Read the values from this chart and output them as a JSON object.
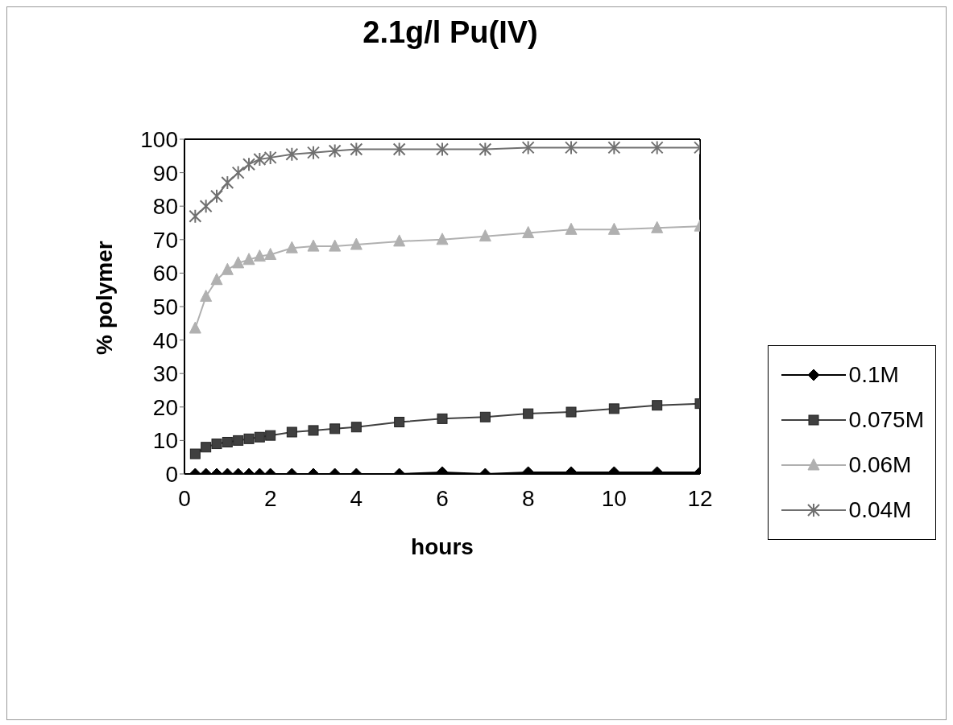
{
  "chart_data": {
    "type": "line",
    "title": "2.1g/l Pu(IV)",
    "xlabel": "hours",
    "ylabel": "% polymer",
    "x": [
      0.25,
      0.5,
      0.75,
      1,
      1.25,
      1.5,
      1.75,
      2,
      2.5,
      3,
      3.5,
      4,
      5,
      6,
      7,
      8,
      9,
      10,
      11,
      12
    ],
    "series": [
      {
        "name": "0.1M",
        "color": "#000000",
        "marker": "diamond",
        "values": [
          0,
          0,
          0,
          0,
          0,
          0,
          0,
          0,
          0,
          0,
          0,
          0,
          0,
          0.5,
          0,
          0.5,
          0.5,
          0.5,
          0.5,
          0.5
        ]
      },
      {
        "name": "0.075M",
        "color": "#404040",
        "marker": "square",
        "values": [
          6,
          8,
          9,
          9.5,
          10,
          10.5,
          11,
          11.5,
          12.5,
          13,
          13.5,
          14,
          15.5,
          16.5,
          17,
          18,
          18.5,
          19.5,
          20.5,
          21
        ]
      },
      {
        "name": "0.06M",
        "color": "#b0b0b0",
        "marker": "triangle",
        "values": [
          43.5,
          53,
          58,
          61,
          63,
          64,
          65,
          65.5,
          67.5,
          68,
          68,
          68.5,
          69.5,
          70,
          71,
          72,
          73,
          73,
          73.5,
          74
        ]
      },
      {
        "name": "0.04M",
        "color": "#707070",
        "marker": "cross",
        "values": [
          77,
          80,
          83,
          87,
          90,
          92.5,
          94,
          94.5,
          95.5,
          96,
          96.5,
          97,
          97,
          97,
          97,
          97.5,
          97.5,
          97.5,
          97.5,
          97.5
        ]
      }
    ],
    "xlim": [
      0,
      12
    ],
    "xticks": [
      0,
      2,
      4,
      6,
      8,
      10,
      12
    ],
    "ylim": [
      0,
      100
    ],
    "yticks": [
      0,
      10,
      20,
      30,
      40,
      50,
      60,
      70,
      80,
      90,
      100
    ],
    "grid": false,
    "legend": "right",
    "line_style": "solid"
  }
}
